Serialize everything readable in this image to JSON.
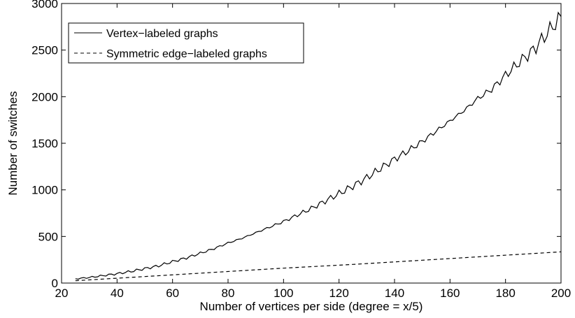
{
  "chart_data": {
    "type": "line",
    "title": "",
    "xlabel": "Number of vertices per side (degree = x/5)",
    "ylabel": "Number of switches",
    "xlim": [
      20,
      200
    ],
    "ylim": [
      0,
      3000
    ],
    "xticks": [
      20,
      40,
      60,
      80,
      100,
      120,
      140,
      160,
      180,
      200
    ],
    "yticks": [
      0,
      500,
      1000,
      1500,
      2000,
      2500,
      3000
    ],
    "grid": false,
    "legend_position": "top-left",
    "series": [
      {
        "name": "Vertex−labeled graphs",
        "style": "solid",
        "color": "#000000",
        "x": [
          25,
          30,
          35,
          40,
          45,
          50,
          55,
          60,
          65,
          70,
          75,
          80,
          85,
          90,
          95,
          100,
          105,
          110,
          115,
          120,
          125,
          130,
          135,
          140,
          145,
          150,
          155,
          160,
          165,
          170,
          175,
          180,
          185,
          190,
          195,
          200
        ],
        "y": [
          45,
          60,
          80,
          100,
          125,
          155,
          185,
          230,
          270,
          320,
          370,
          430,
          480,
          540,
          600,
          660,
          730,
          800,
          880,
          960,
          1040,
          1130,
          1230,
          1330,
          1420,
          1520,
          1630,
          1740,
          1850,
          1980,
          2080,
          2230,
          2370,
          2500,
          2680,
          2860
        ]
      },
      {
        "name": "Symmetric edge−labeled graphs",
        "style": "dashed",
        "color": "#000000",
        "x": [
          25,
          50,
          75,
          100,
          125,
          150,
          175,
          200
        ],
        "y": [
          25,
          70,
          115,
          160,
          200,
          245,
          290,
          335
        ]
      }
    ]
  }
}
